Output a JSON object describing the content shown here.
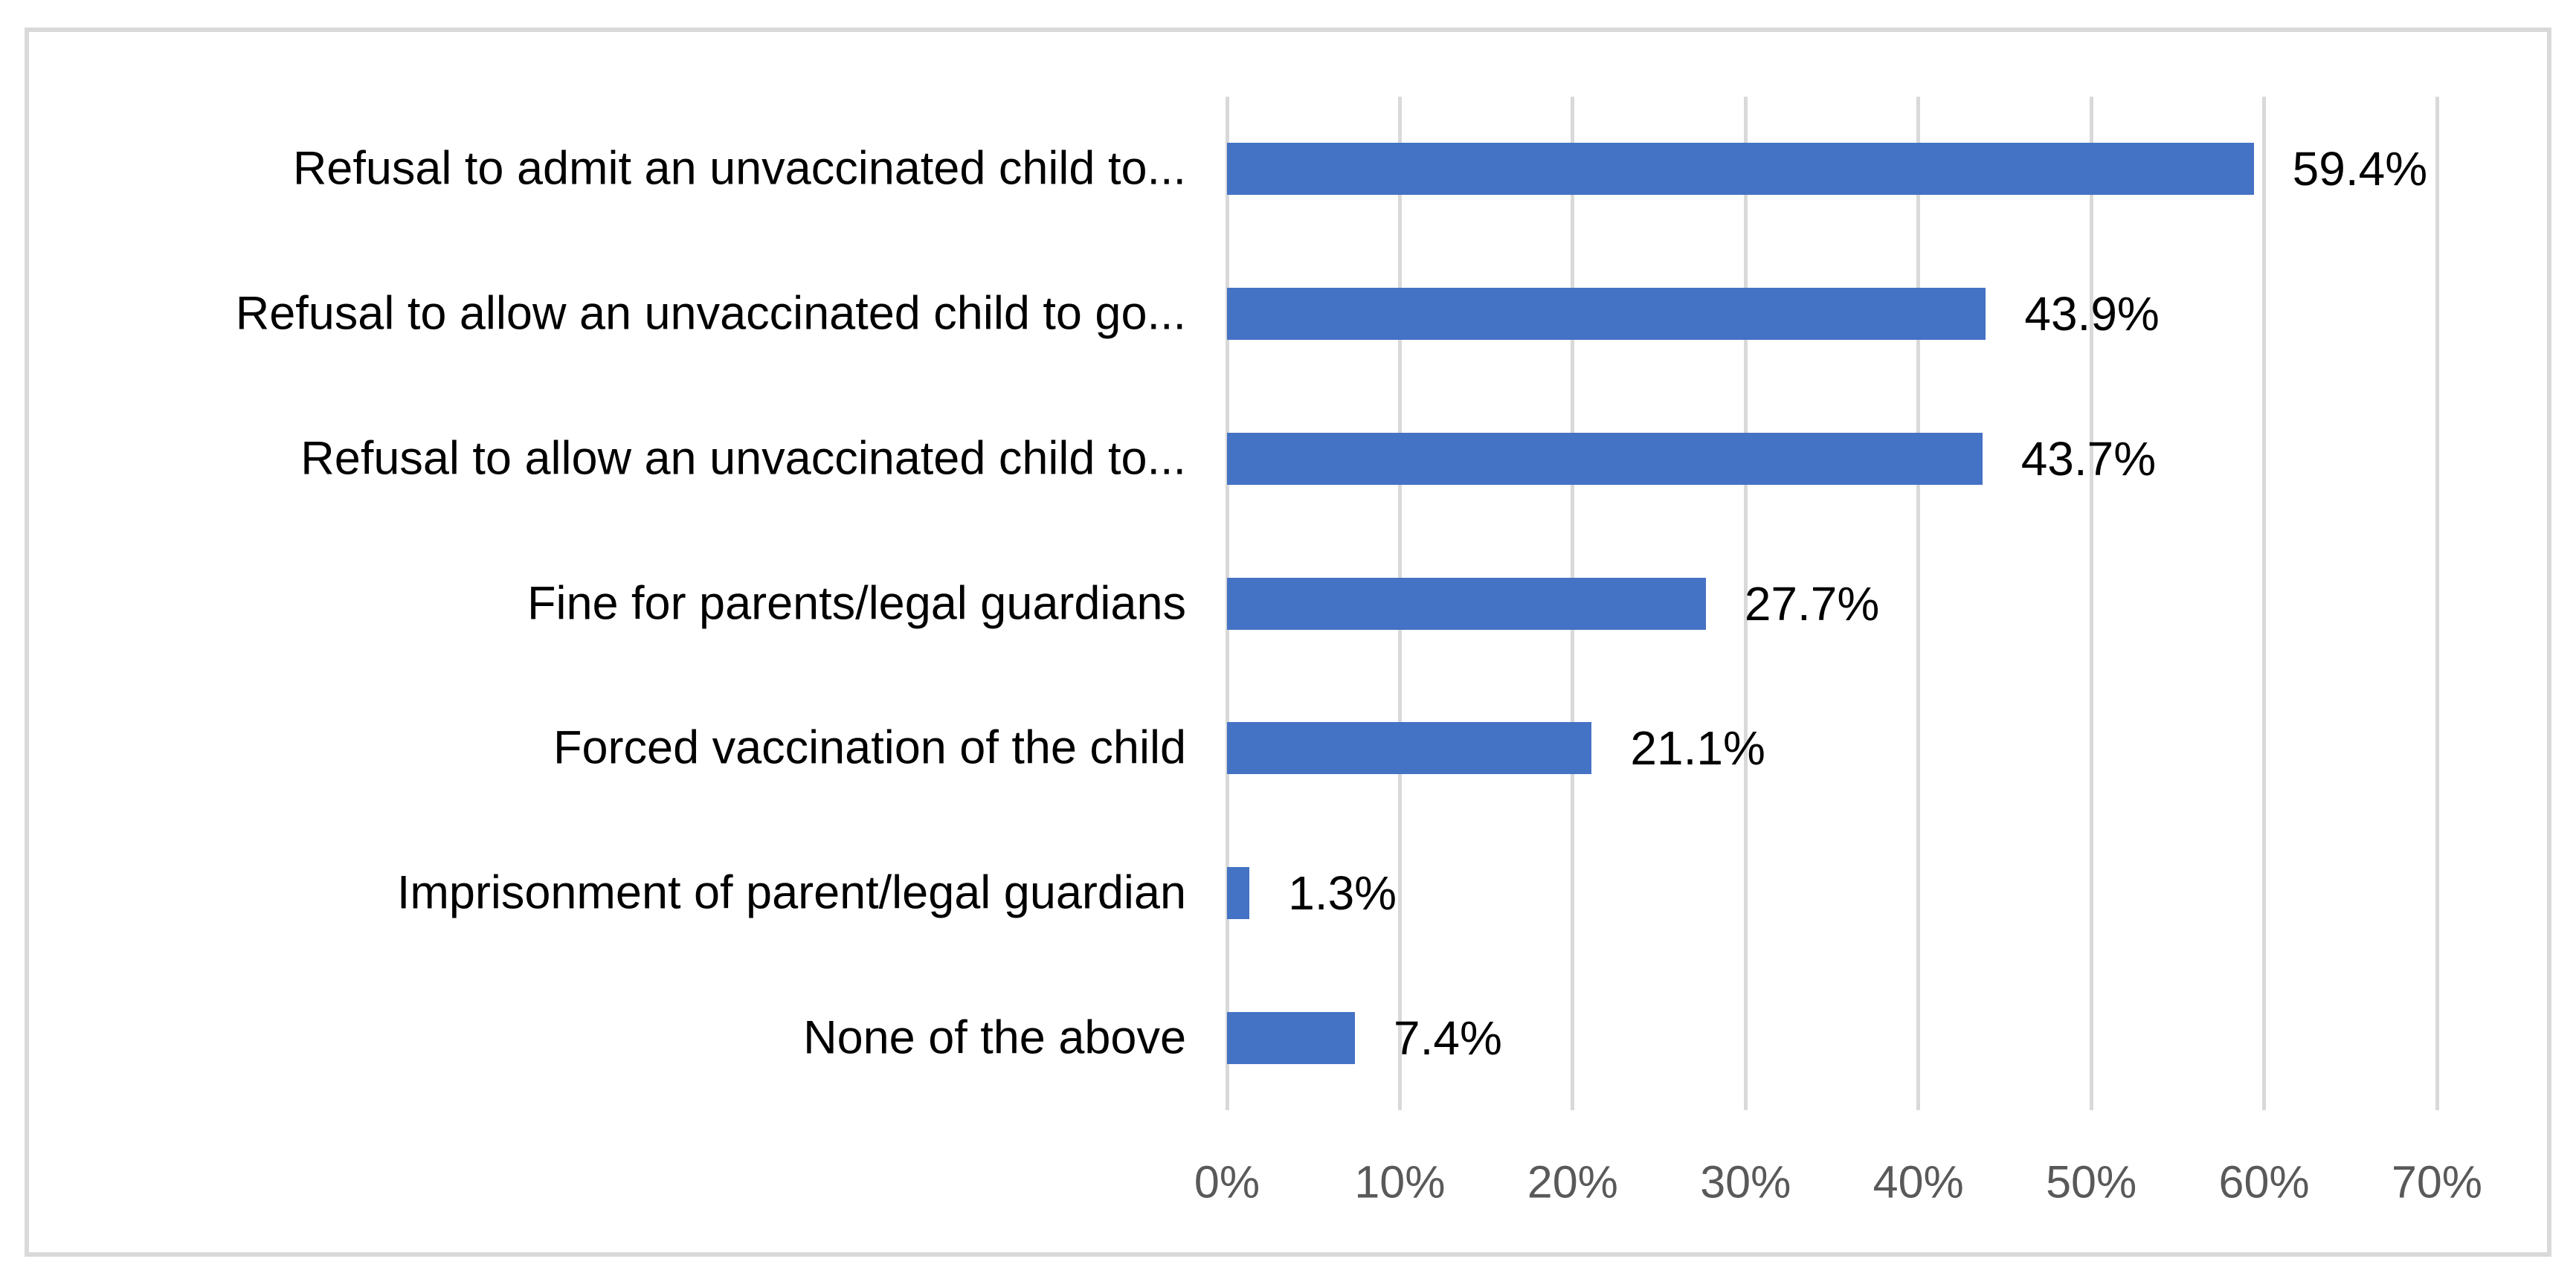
{
  "chart_data": {
    "type": "bar",
    "orientation": "horizontal",
    "title": "",
    "xlabel": "",
    "ylabel": "",
    "legend": "none",
    "grid": "vertical-gridlines",
    "categories": [
      "Refusal to admit an unvaccinated child to...",
      "Refusal to allow an unvaccinated child to go...",
      "Refusal to allow an unvaccinated child to...",
      "Fine for parents/legal guardians",
      "Forced vaccination of the child",
      "Imprisonment of parent/legal guardian",
      "None of the above"
    ],
    "values": [
      59.4,
      43.9,
      43.7,
      27.7,
      21.1,
      1.3,
      7.4
    ],
    "data_labels": [
      "59.4%",
      "43.9%",
      "43.7%",
      "27.7%",
      "21.1%",
      "1.3%",
      "7.4%"
    ],
    "x_ticks": [
      "0%",
      "10%",
      "20%",
      "30%",
      "40%",
      "50%",
      "60%",
      "70%"
    ],
    "xlim": [
      0,
      70
    ],
    "colors": {
      "bar": "#4472C4",
      "gridline": "#D9D9D9",
      "frame_border": "#D9D9D9",
      "tick_text": "#595959",
      "label_text": "#000000",
      "background": "#FFFFFF"
    }
  }
}
